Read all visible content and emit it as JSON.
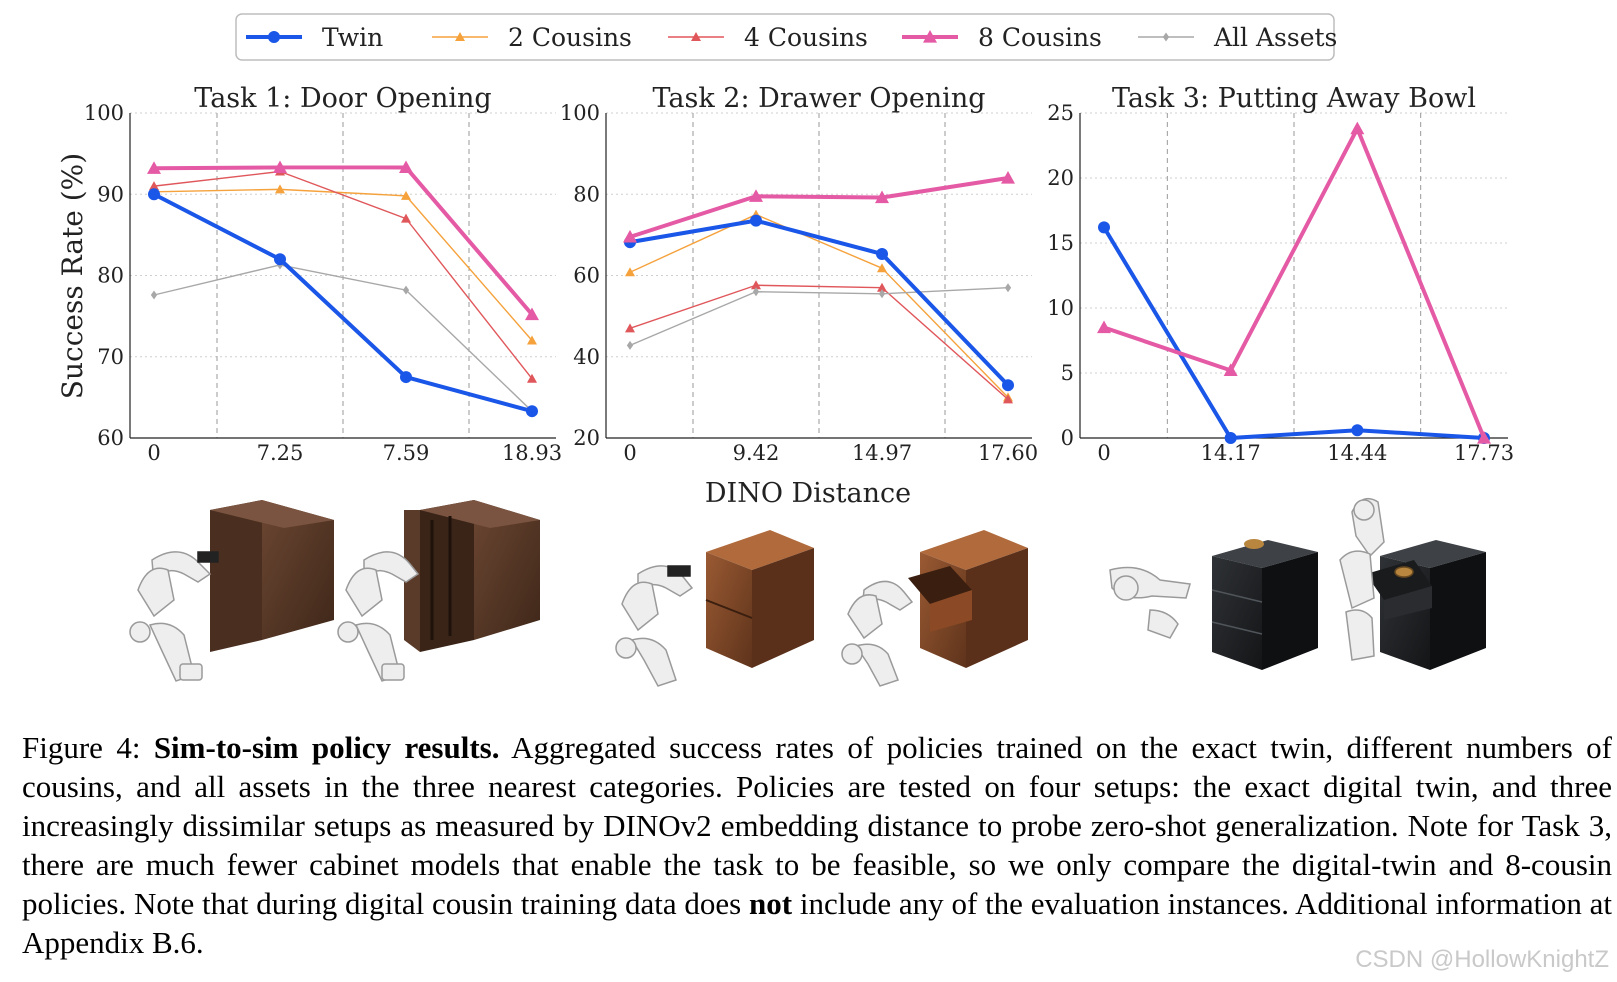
{
  "legend": [
    {
      "name": "Twin",
      "color": "#1a56e8",
      "marker": "circle",
      "width": 4
    },
    {
      "name": "2 Cousins",
      "color": "#f5a23c",
      "marker": "triangle",
      "width": 1.4
    },
    {
      "name": "4 Cousins",
      "color": "#e0575b",
      "marker": "triangle",
      "width": 1.4
    },
    {
      "name": "8 Cousins",
      "color": "#e55aa5",
      "marker": "triangle",
      "width": 4
    },
    {
      "name": "All Assets",
      "color": "#a8a8a8",
      "marker": "diamond",
      "width": 1.4
    }
  ],
  "shared": {
    "ylabel": "Success Rate (%)",
    "xlabel": "DINO Distance"
  },
  "chart_data": [
    {
      "type": "line",
      "title": "Task 1: Door Opening",
      "categories": [
        "0",
        "7.25",
        "7.59",
        "18.93"
      ],
      "ylim": [
        60,
        100
      ],
      "yticks": [
        60,
        70,
        80,
        90,
        100
      ],
      "series": [
        {
          "name": "Twin",
          "values": [
            90,
            82,
            67.5,
            63.3
          ]
        },
        {
          "name": "2 Cousins",
          "values": [
            90.3,
            90.6,
            89.8,
            72
          ]
        },
        {
          "name": "4 Cousins",
          "values": [
            91,
            92.8,
            87,
            67.3
          ]
        },
        {
          "name": "8 Cousins",
          "values": [
            93.2,
            93.3,
            93.3,
            75.2
          ]
        },
        {
          "name": "All Assets",
          "values": [
            77.6,
            81.3,
            78.2,
            63.3
          ]
        }
      ]
    },
    {
      "type": "line",
      "title": "Task 2: Drawer Opening",
      "categories": [
        "0",
        "9.42",
        "14.97",
        "17.60"
      ],
      "ylim": [
        20,
        100
      ],
      "yticks": [
        20,
        40,
        60,
        80,
        100
      ],
      "series": [
        {
          "name": "Twin",
          "values": [
            68.2,
            73.5,
            65.3,
            33
          ]
        },
        {
          "name": "2 Cousins",
          "values": [
            60.8,
            75,
            61.8,
            30
          ]
        },
        {
          "name": "4 Cousins",
          "values": [
            47,
            57.6,
            57,
            29.5
          ]
        },
        {
          "name": "8 Cousins",
          "values": [
            69.5,
            79.5,
            79.2,
            84
          ]
        },
        {
          "name": "All Assets",
          "values": [
            42.8,
            56,
            55.5,
            57
          ]
        }
      ]
    },
    {
      "type": "line",
      "title": "Task 3: Putting Away Bowl",
      "categories": [
        "0",
        "14.17",
        "14.44",
        "17.73"
      ],
      "ylim": [
        0,
        25
      ],
      "yticks": [
        0,
        5,
        10,
        15,
        20,
        25
      ],
      "series": [
        {
          "name": "Twin",
          "values": [
            16.2,
            0,
            0.6,
            0
          ]
        },
        {
          "name": "8 Cousins",
          "values": [
            8.5,
            5.2,
            23.8,
            0
          ]
        }
      ]
    }
  ],
  "caption": {
    "label": "Figure 4: ",
    "bold": "Sim-to-sim policy results.",
    "text1": " Aggregated success rates of policies trained on the exact twin, different numbers of cousins, and all assets in the three nearest categories. Policies are tested on four setups: the exact digital twin, and three increasingly dissimilar setups as measured by DINOv2 embedding distance to probe zero-shot generalization.  Note for Task 3, there are much fewer cabinet models that enable the task to be feasible, so we only compare the digital-twin and 8-cousin policies.  Note that during digital cousin training data does ",
    "bold2": "not",
    "text2": " include any of the evaluation instances. Additional information at Appendix B.6."
  },
  "watermark": "CSDN @HollowKnightZ"
}
